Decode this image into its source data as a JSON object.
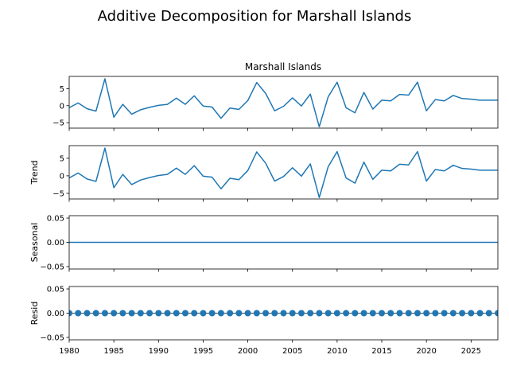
{
  "chart_data": {
    "type": "line",
    "title": "Additive Decomposition for Marshall Islands",
    "subplot_title": "Marshall Islands",
    "x": [
      1980,
      1981,
      1982,
      1983,
      1984,
      1985,
      1986,
      1987,
      1988,
      1989,
      1990,
      1991,
      1992,
      1993,
      1994,
      1995,
      1996,
      1997,
      1998,
      1999,
      2000,
      2001,
      2002,
      2003,
      2004,
      2005,
      2006,
      2007,
      2008,
      2009,
      2010,
      2011,
      2012,
      2013,
      2014,
      2015,
      2016,
      2017,
      2018,
      2019,
      2020,
      2021,
      2022,
      2023,
      2024,
      2025,
      2026,
      2027,
      2028
    ],
    "xlim": [
      1980,
      2028
    ],
    "xticks": [
      1980,
      1985,
      1990,
      1995,
      2000,
      2005,
      2010,
      2015,
      2020,
      2025
    ],
    "line_color": "#1f77b4",
    "panels": [
      {
        "name": "observed",
        "ylabel": "",
        "ylim": [
          -6.6,
          8.6
        ],
        "yticks": [
          5,
          0,
          -5
        ],
        "ytick_labels": [
          "5",
          "0",
          "−5"
        ],
        "values": [
          -0.6,
          0.8,
          -0.9,
          -1.6,
          7.9,
          -3.4,
          0.4,
          -2.5,
          -1.2,
          -0.5,
          0.1,
          0.4,
          2.2,
          0.4,
          2.9,
          -0.1,
          -0.4,
          -3.7,
          -0.7,
          -1.1,
          1.5,
          6.8,
          3.6,
          -1.5,
          -0.2,
          2.3,
          -0.1,
          3.4,
          -6.2,
          2.6,
          6.9,
          -0.6,
          -2.1,
          3.9,
          -1.0,
          1.6,
          1.4,
          3.3,
          3.1,
          6.9,
          -1.5,
          1.8,
          1.4,
          3.0,
          2.1,
          1.9,
          1.6,
          1.6,
          1.6
        ],
        "markers": false
      },
      {
        "name": "trend",
        "ylabel": "Trend",
        "ylim": [
          -6.6,
          8.6
        ],
        "yticks": [
          5,
          0,
          -5
        ],
        "ytick_labels": [
          "5",
          "0",
          "−5"
        ],
        "values": [
          -0.6,
          0.8,
          -0.9,
          -1.6,
          7.9,
          -3.4,
          0.4,
          -2.5,
          -1.2,
          -0.5,
          0.1,
          0.4,
          2.2,
          0.4,
          2.9,
          -0.1,
          -0.4,
          -3.7,
          -0.7,
          -1.1,
          1.5,
          6.8,
          3.6,
          -1.5,
          -0.2,
          2.3,
          -0.1,
          3.4,
          -6.2,
          2.6,
          6.9,
          -0.6,
          -2.1,
          3.9,
          -1.0,
          1.6,
          1.4,
          3.3,
          3.1,
          6.9,
          -1.5,
          1.8,
          1.4,
          3.0,
          2.1,
          1.9,
          1.6,
          1.6,
          1.6
        ],
        "markers": false
      },
      {
        "name": "seasonal",
        "ylabel": "Seasonal",
        "ylim": [
          -0.055,
          0.055
        ],
        "yticks": [
          0.05,
          0.0,
          -0.05
        ],
        "ytick_labels": [
          "0.05",
          "0.00",
          "−0.05"
        ],
        "values": [
          0,
          0,
          0,
          0,
          0,
          0,
          0,
          0,
          0,
          0,
          0,
          0,
          0,
          0,
          0,
          0,
          0,
          0,
          0,
          0,
          0,
          0,
          0,
          0,
          0,
          0,
          0,
          0,
          0,
          0,
          0,
          0,
          0,
          0,
          0,
          0,
          0,
          0,
          0,
          0,
          0,
          0,
          0,
          0,
          0,
          0,
          0,
          0,
          0
        ],
        "markers": false
      },
      {
        "name": "resid",
        "ylabel": "Resid",
        "ylim": [
          -0.055,
          0.055
        ],
        "yticks": [
          0.05,
          0.0,
          -0.05
        ],
        "ytick_labels": [
          "0.05",
          "0.00",
          "−0.05"
        ],
        "values": [
          0,
          0,
          0,
          0,
          0,
          0,
          0,
          0,
          0,
          0,
          0,
          0,
          0,
          0,
          0,
          0,
          0,
          0,
          0,
          0,
          0,
          0,
          0,
          0,
          0,
          0,
          0,
          0,
          0,
          0,
          0,
          0,
          0,
          0,
          0,
          0,
          0,
          0,
          0,
          0,
          0,
          0,
          0,
          0,
          0,
          0,
          0,
          0,
          0
        ],
        "markers": true
      }
    ]
  }
}
